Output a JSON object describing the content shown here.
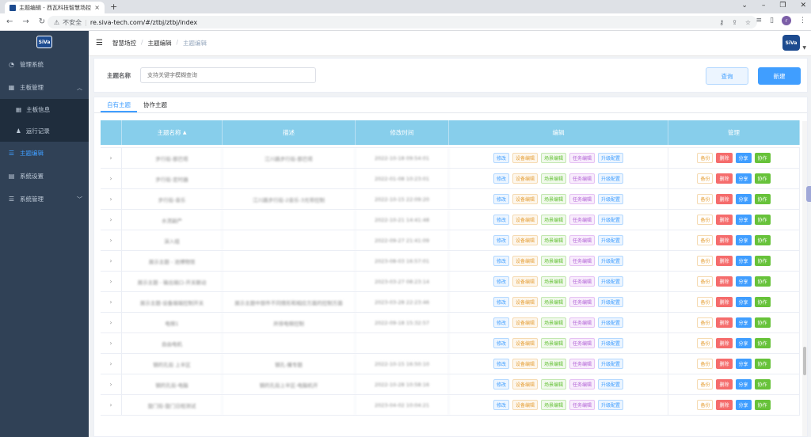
{
  "browser": {
    "tab_title": "主题编辑 - 西瓦科技智慧场控",
    "insecure_label": "不安全",
    "url": "re.siva-tech.com/#/ztbj/ztbj/index",
    "profile_initials": "r"
  },
  "logo_text": "SiVa",
  "sidebar": {
    "items": [
      {
        "label": "管理系统",
        "icon": "dashboard-icon"
      },
      {
        "label": "主板管理",
        "icon": "grid-icon"
      },
      {
        "label": "主板信息",
        "icon": "grid-icon"
      },
      {
        "label": "运行记录",
        "icon": "user-icon"
      },
      {
        "label": "主题编辑",
        "icon": "list-icon"
      },
      {
        "label": "系统设置",
        "icon": "doc-icon"
      },
      {
        "label": "系统管理",
        "icon": "list-icon"
      }
    ]
  },
  "breadcrumb": [
    "智慧场控",
    "主题编辑",
    "主题编辑"
  ],
  "search": {
    "label": "主题名称",
    "placeholder": "支持关键字模糊查询",
    "query_button": "查询",
    "new_button": "新建"
  },
  "tabs": [
    "自有主题",
    "协作主题"
  ],
  "table": {
    "headers": [
      "主题名称",
      "描述",
      "修改时间",
      "编辑",
      "管理"
    ],
    "sort_indicator": "▲",
    "edit_tags": [
      "修改",
      "设备编辑",
      "场景编辑",
      "任务编辑",
      "升级配置"
    ],
    "manage_tags": [
      "备份",
      "删除",
      "分享",
      "协作"
    ],
    "rows": [
      {
        "name": "步行街-那巴塔",
        "desc": "江川路步行街-那巴塔",
        "time": "2022-10-18 09:54:01"
      },
      {
        "name": "步行街-定时器",
        "desc": "",
        "time": "2022-01-08 10:23:01"
      },
      {
        "name": "步行街-音乐",
        "desc": "江川路步行街-2音乐-3光带控制",
        "time": "2022-10-15 22:09:20"
      },
      {
        "name": "水流副产",
        "desc": "",
        "time": "2022-10-21 14:41:48"
      },
      {
        "name": "演入组",
        "desc": "",
        "time": "2022-09-27 21:41:09"
      },
      {
        "name": "展示主题 - 池博物馆",
        "desc": "",
        "time": "2023-08-03 16:57:01"
      },
      {
        "name": "展示主题 - 输出端口-开关联动",
        "desc": "",
        "time": "2023-03-27 08:23:14"
      },
      {
        "name": "展示主题-设备端端控制开关",
        "desc": "展示主题中部件不同情形和相应方面的控制方面",
        "time": "2023-03-28 22:23:46"
      },
      {
        "name": "电梯1",
        "desc": "并排电梯控制",
        "time": "2022-09-18 15:32:57"
      },
      {
        "name": "自由电机",
        "desc": "",
        "time": ""
      },
      {
        "name": "钢的孔街 上半区",
        "desc": "钢孔-播专题",
        "time": "2022-10-15 16:50:10"
      },
      {
        "name": "钢的孔街-电脑",
        "desc": "钢的孔街上半区-电脑机开",
        "time": "2022-10-28 10:58:16"
      },
      {
        "name": "旋门街-旋门日程测试",
        "desc": "",
        "time": "2023-04-02 10:04:21"
      }
    ]
  },
  "colors": {
    "sidebar_bg": "#304156",
    "table_header": "#87ceeb",
    "primary": "#409eff"
  }
}
